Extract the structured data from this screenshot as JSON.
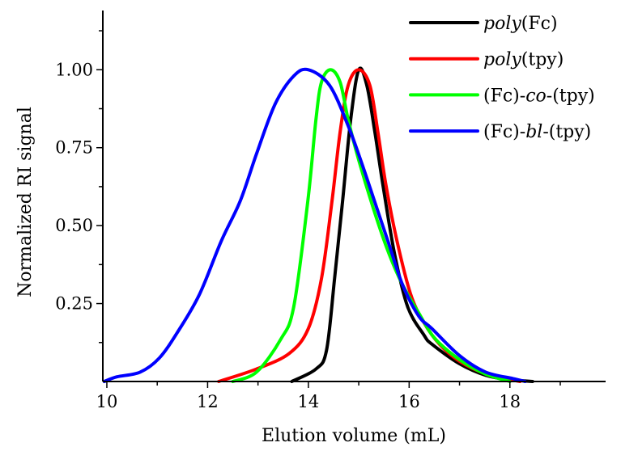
{
  "chart_data": {
    "type": "line",
    "title": "",
    "xlabel": "Elution volume (mL)",
    "ylabel": "Normalized RI signal",
    "xlim": [
      9.92,
      19.9
    ],
    "ylim": [
      0,
      1.19
    ],
    "xticks": [
      10,
      12,
      14,
      16,
      18
    ],
    "xtick_labels": [
      "10",
      "12",
      "14",
      "16",
      "18"
    ],
    "yticks": [
      0.25,
      0.5,
      0.75,
      1.0
    ],
    "ytick_labels": [
      "0.25",
      "0.50",
      "0.75",
      "1.00"
    ],
    "grid": false,
    "legend_position": "top-right",
    "series": [
      {
        "name": "poly(Fc)",
        "label_parts": [
          {
            "text": "poly",
            "italic": true
          },
          {
            "text": "(Fc)",
            "italic": false
          }
        ],
        "color": "#000000",
        "x": [
          13.67,
          14.15,
          14.36,
          14.52,
          14.68,
          14.84,
          15.0,
          15.16,
          15.32,
          15.48,
          15.71,
          15.97,
          16.29,
          16.45,
          17.0,
          17.52,
          18.0,
          18.45
        ],
        "y": [
          0.0,
          0.04,
          0.1,
          0.33,
          0.58,
          0.84,
          1.0,
          0.95,
          0.8,
          0.63,
          0.41,
          0.24,
          0.15,
          0.12,
          0.057,
          0.02,
          0.006,
          0.0
        ]
      },
      {
        "name": "poly(tpy)",
        "label_parts": [
          {
            "text": "poly",
            "italic": true
          },
          {
            "text": "(tpy)",
            "italic": false
          }
        ],
        "color": "#ff0000",
        "x": [
          12.22,
          12.97,
          13.62,
          14.0,
          14.26,
          14.47,
          14.63,
          14.79,
          15.0,
          15.22,
          15.38,
          15.54,
          15.76,
          16.03,
          16.29,
          16.6,
          17.0,
          17.52,
          18.2
        ],
        "y": [
          0.0,
          0.04,
          0.09,
          0.17,
          0.33,
          0.58,
          0.8,
          0.95,
          1.0,
          0.95,
          0.8,
          0.63,
          0.45,
          0.28,
          0.19,
          0.12,
          0.065,
          0.025,
          0.0
        ]
      },
      {
        "name": "(Fc)-co-(tpy)",
        "label_parts": [
          {
            "text": "(Fc)-",
            "italic": false
          },
          {
            "text": "co",
            "italic": true
          },
          {
            "text": "-(tpy)",
            "italic": false
          }
        ],
        "color": "#00ff00",
        "x": [
          12.5,
          12.97,
          13.45,
          13.71,
          13.99,
          14.15,
          14.26,
          14.44,
          14.63,
          14.79,
          15.0,
          15.32,
          15.6,
          15.87,
          16.19,
          16.5,
          17.0,
          17.5,
          18.0
        ],
        "y": [
          0.0,
          0.03,
          0.135,
          0.24,
          0.58,
          0.84,
          0.96,
          1.0,
          0.96,
          0.84,
          0.71,
          0.54,
          0.41,
          0.31,
          0.22,
          0.14,
          0.07,
          0.025,
          0.0
        ]
      },
      {
        "name": "(Fc)-bl-(tpy)",
        "label_parts": [
          {
            "text": "(Fc)-",
            "italic": false
          },
          {
            "text": "bl",
            "italic": true
          },
          {
            "text": "-(tpy)",
            "italic": false
          }
        ],
        "color": "#0000ff",
        "x": [
          9.95,
          10.2,
          10.66,
          11.04,
          11.41,
          11.84,
          12.27,
          12.65,
          12.97,
          13.34,
          13.71,
          14.0,
          14.42,
          14.79,
          15.06,
          15.33,
          15.6,
          15.87,
          16.19,
          16.45,
          17.0,
          17.52,
          18.05,
          18.3
        ],
        "y": [
          0.0,
          0.015,
          0.03,
          0.075,
          0.16,
          0.28,
          0.45,
          0.58,
          0.73,
          0.89,
          0.98,
          1.0,
          0.95,
          0.82,
          0.7,
          0.57,
          0.44,
          0.31,
          0.21,
          0.17,
          0.083,
          0.03,
          0.01,
          0.0
        ]
      }
    ]
  }
}
